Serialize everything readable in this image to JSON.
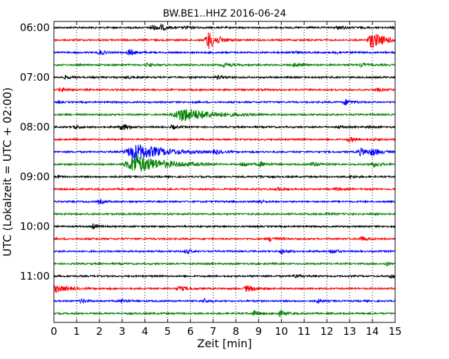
{
  "chart_data": {
    "type": "line",
    "title": "BW.BE1..HHZ 2016-06-24",
    "xlabel": "Zeit  [min]",
    "ylabel": "UTC (Lokalzeit = UTC + 02:00)",
    "xlim": [
      0,
      15
    ],
    "x_ticks": [
      "0",
      "1",
      "2",
      "3",
      "4",
      "5",
      "6",
      "7",
      "8",
      "9",
      "10",
      "11",
      "12",
      "13",
      "14",
      "15"
    ],
    "y_tick_labels": [
      "06:00",
      "07:00",
      "08:00",
      "09:00",
      "10:00",
      "11:00"
    ],
    "vertical_grid": "dotted",
    "trace_colors": [
      "#000000",
      "#ff0000",
      "#0000ff",
      "#008000"
    ],
    "traces": [
      {
        "start": "06:00",
        "events": [
          [
            4.3,
            4,
            0.3
          ],
          [
            4.7,
            3,
            0.3
          ],
          [
            5.8,
            2,
            0.3
          ],
          [
            12.5,
            2,
            0.4
          ],
          [
            14.9,
            3,
            0.1
          ]
        ]
      },
      {
        "start": "06:15",
        "events": [
          [
            6.8,
            13,
            0.4
          ],
          [
            14.0,
            11,
            0.6
          ]
        ]
      },
      {
        "start": "06:30",
        "events": [
          [
            2.0,
            4,
            0.2
          ],
          [
            3.3,
            4,
            0.3
          ],
          [
            10.5,
            2,
            0.2
          ],
          [
            12.4,
            2,
            0.2
          ]
        ]
      },
      {
        "start": "06:45",
        "events": [
          [
            4.1,
            3,
            0.2
          ],
          [
            7.5,
            3,
            0.3
          ],
          [
            10.6,
            3,
            0.3
          ],
          [
            13.5,
            3,
            0.2
          ]
        ]
      },
      {
        "start": "07:00",
        "events": [
          [
            0.5,
            2,
            0.2
          ],
          [
            3.2,
            2,
            0.2
          ],
          [
            7.2,
            2,
            0.3
          ]
        ]
      },
      {
        "start": "07:15",
        "events": [
          [
            0.3,
            3,
            0.3
          ],
          [
            14.2,
            2,
            0.3
          ]
        ]
      },
      {
        "start": "07:30",
        "events": [
          [
            0.2,
            2,
            0.1
          ],
          [
            12.8,
            4,
            0.3
          ]
        ]
      },
      {
        "start": "07:45",
        "events": [
          [
            5.7,
            10,
            1.2
          ]
        ]
      },
      {
        "start": "08:00",
        "events": [
          [
            0.9,
            3,
            0.2
          ],
          [
            3.0,
            5,
            0.3
          ],
          [
            5.2,
            3,
            0.2
          ],
          [
            12.5,
            2,
            0.2
          ],
          [
            13.8,
            2,
            0.2
          ]
        ]
      },
      {
        "start": "08:15",
        "events": [
          [
            13.0,
            3,
            0.3
          ],
          [
            14.1,
            2,
            0.2
          ]
        ]
      },
      {
        "start": "08:30",
        "events": [
          [
            3.6,
            12,
            1.2
          ],
          [
            7.1,
            3,
            0.3
          ],
          [
            13.5,
            5,
            0.4
          ],
          [
            14.0,
            4,
            0.3
          ]
        ]
      },
      {
        "start": "08:45",
        "events": [
          [
            3.6,
            13,
            1.2
          ],
          [
            8.3,
            3,
            0.3
          ],
          [
            9.1,
            3,
            0.3
          ],
          [
            11.4,
            3,
            0.3
          ],
          [
            14.0,
            4,
            0.3
          ]
        ]
      },
      {
        "start": "09:00",
        "events": [
          [
            0.2,
            2,
            0.1
          ],
          [
            9.0,
            2,
            0.2
          ],
          [
            13.0,
            2,
            0.2
          ]
        ]
      },
      {
        "start": "09:15",
        "events": [
          [
            9.8,
            3,
            0.2
          ],
          [
            12.4,
            2,
            0.3
          ]
        ]
      },
      {
        "start": "09:30",
        "events": [
          [
            2.0,
            3,
            0.2
          ],
          [
            9.0,
            3,
            0.2
          ]
        ]
      },
      {
        "start": "09:45",
        "events": [
          [
            12.0,
            2,
            0.2
          ]
        ]
      },
      {
        "start": "10:00",
        "events": [
          [
            1.7,
            4,
            0.2
          ]
        ]
      },
      {
        "start": "10:15",
        "events": [
          [
            9.5,
            3,
            0.3
          ],
          [
            13.5,
            4,
            0.2
          ]
        ]
      },
      {
        "start": "10:30",
        "events": [
          [
            5.8,
            3,
            0.2
          ],
          [
            10.0,
            4,
            0.2
          ],
          [
            12.2,
            4,
            0.2
          ]
        ]
      },
      {
        "start": "10:45",
        "events": [
          [
            14.6,
            3,
            0.2
          ]
        ]
      },
      {
        "start": "11:00",
        "events": [
          [
            10.6,
            3,
            0.2
          ],
          [
            14.8,
            3,
            0.2
          ]
        ]
      },
      {
        "start": "11:15",
        "events": [
          [
            0.1,
            5,
            0.5
          ],
          [
            5.5,
            3,
            0.4
          ],
          [
            8.5,
            4,
            0.4
          ]
        ]
      },
      {
        "start": "11:30",
        "events": [
          [
            1.2,
            3,
            0.2
          ],
          [
            3.0,
            3,
            0.2
          ],
          [
            6.6,
            3,
            0.2
          ],
          [
            11.6,
            3,
            0.2
          ]
        ]
      },
      {
        "start": "11:45",
        "events": [
          [
            8.8,
            3,
            0.3
          ],
          [
            9.9,
            4,
            0.3
          ]
        ]
      }
    ]
  }
}
